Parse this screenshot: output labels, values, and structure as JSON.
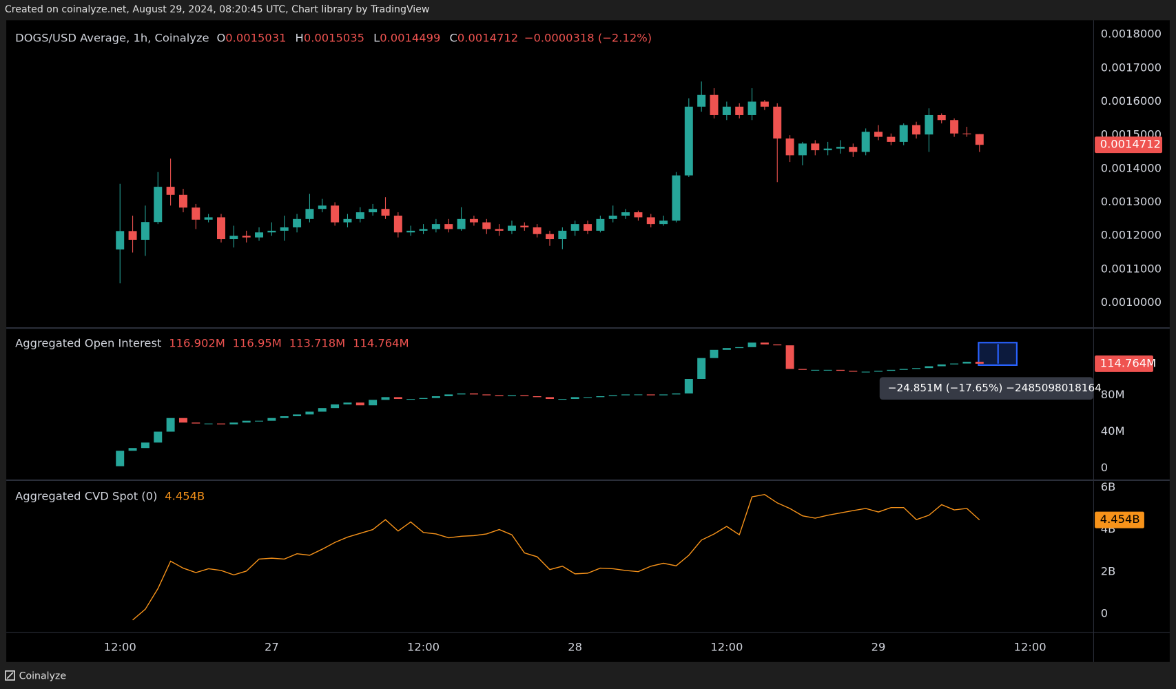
{
  "header": {
    "credit": "Created on coinalyze.net, August 29, 2024, 08:20:45 UTC, Chart library by TradingView"
  },
  "footer": {
    "brand": "Coinalyze"
  },
  "chart_data": [
    {
      "type": "candlestick",
      "title": "DOGS/USD Average, 1h, Coinalyze",
      "legend": [
        {
          "label": "O",
          "value": 0.0015031
        },
        {
          "label": "H",
          "value": 0.0015035
        },
        {
          "label": "L",
          "value": 0.0014499
        },
        {
          "label": "C",
          "value": 0.0014712
        }
      ],
      "change": "−0.0000318 (−2.12%)",
      "last_label": "0.0014712",
      "up_color": "#26a69a",
      "down_color": "#ef5350",
      "ylim": [
        0.000926,
        0.001836
      ],
      "yticks": [
        {
          "value": 0.001,
          "label": "0.0010000"
        },
        {
          "value": 0.0011,
          "label": "0.0011000"
        },
        {
          "value": 0.0012,
          "label": "0.0012000"
        },
        {
          "value": 0.0013,
          "label": "0.0013000"
        },
        {
          "value": 0.0014,
          "label": "0.0014000"
        },
        {
          "value": 0.0015,
          "label": "0.0015000"
        },
        {
          "value": 0.0016,
          "label": "0.0016000"
        },
        {
          "value": 0.0017,
          "label": "0.0017000"
        },
        {
          "value": 0.0018,
          "label": "0.0018000"
        }
      ],
      "open": [
        0.001159,
        0.001214,
        0.001188,
        0.001241,
        0.001346,
        0.001322,
        0.001284,
        0.001248,
        0.001255,
        0.00119,
        0.0012,
        0.001195,
        0.00121,
        0.001215,
        0.001225,
        0.00125,
        0.00128,
        0.00129,
        0.00124,
        0.00125,
        0.00127,
        0.00128,
        0.00126,
        0.00121,
        0.001215,
        0.00122,
        0.001235,
        0.00122,
        0.00125,
        0.00124,
        0.00122,
        0.001215,
        0.00123,
        0.001225,
        0.001205,
        0.00119,
        0.001215,
        0.001235,
        0.001215,
        0.00125,
        0.00126,
        0.00127,
        0.001255,
        0.001235,
        0.001245,
        0.00138,
        0.001585,
        0.00162,
        0.00156,
        0.001585,
        0.00156,
        0.0016,
        0.001585,
        0.00149,
        0.00144,
        0.001475,
        0.001455,
        0.00146,
        0.001465,
        0.00145,
        0.00151,
        0.001495,
        0.00148,
        0.00153,
        0.001502,
        0.00156,
        0.001545,
        0.001505,
        0.0015031
      ],
      "high": [
        0.001355,
        0.00126,
        0.00129,
        0.00139,
        0.00143,
        0.00134,
        0.001295,
        0.001265,
        0.001265,
        0.00123,
        0.001215,
        0.001225,
        0.00124,
        0.00126,
        0.001265,
        0.001325,
        0.00131,
        0.0013,
        0.001265,
        0.001285,
        0.001295,
        0.001315,
        0.00127,
        0.00123,
        0.001235,
        0.00125,
        0.00125,
        0.001285,
        0.00126,
        0.00125,
        0.001235,
        0.001245,
        0.00124,
        0.001235,
        0.001215,
        0.001225,
        0.001245,
        0.001245,
        0.00126,
        0.00129,
        0.00128,
        0.001275,
        0.001265,
        0.00126,
        0.00139,
        0.00161,
        0.00166,
        0.00164,
        0.0016,
        0.001595,
        0.00164,
        0.001605,
        0.001595,
        0.0015,
        0.00148,
        0.001485,
        0.00148,
        0.001485,
        0.001475,
        0.00152,
        0.00153,
        0.001505,
        0.001535,
        0.00154,
        0.00158,
        0.001565,
        0.00155,
        0.001525,
        0.0015035
      ],
      "low": [
        0.001058,
        0.00115,
        0.00114,
        0.001235,
        0.00129,
        0.00127,
        0.00122,
        0.00124,
        0.00118,
        0.001165,
        0.00118,
        0.001185,
        0.0012,
        0.001185,
        0.00121,
        0.00124,
        0.00127,
        0.00123,
        0.001225,
        0.00124,
        0.00126,
        0.00125,
        0.001195,
        0.0012,
        0.001205,
        0.00121,
        0.00121,
        0.001215,
        0.00123,
        0.001205,
        0.0012,
        0.001205,
        0.001215,
        0.001195,
        0.00117,
        0.00116,
        0.0012,
        0.001205,
        0.00121,
        0.00124,
        0.00125,
        0.001245,
        0.001225,
        0.00123,
        0.00124,
        0.001375,
        0.00157,
        0.00155,
        0.001545,
        0.00155,
        0.001545,
        0.001575,
        0.00136,
        0.00142,
        0.00141,
        0.00144,
        0.00144,
        0.001445,
        0.001435,
        0.00144,
        0.001485,
        0.00147,
        0.00147,
        0.00149,
        0.00145,
        0.001535,
        0.001495,
        0.001495,
        0.0014499
      ],
      "close": [
        0.001214,
        0.001188,
        0.001241,
        0.001346,
        0.001322,
        0.001284,
        0.001248,
        0.001255,
        0.00119,
        0.0012,
        0.001195,
        0.00121,
        0.001215,
        0.001225,
        0.00125,
        0.00128,
        0.00129,
        0.00124,
        0.00125,
        0.00127,
        0.00128,
        0.00126,
        0.00121,
        0.001215,
        0.00122,
        0.001235,
        0.00122,
        0.00125,
        0.00124,
        0.00122,
        0.001215,
        0.00123,
        0.001225,
        0.001205,
        0.00119,
        0.001215,
        0.001235,
        0.001215,
        0.00125,
        0.00126,
        0.00127,
        0.001255,
        0.001235,
        0.001245,
        0.00138,
        0.001585,
        0.00162,
        0.00156,
        0.001585,
        0.00156,
        0.0016,
        0.001585,
        0.00149,
        0.00144,
        0.001475,
        0.001455,
        0.00146,
        0.001465,
        0.00145,
        0.00151,
        0.001495,
        0.00148,
        0.00153,
        0.001502,
        0.00156,
        0.001545,
        0.001505,
        0.001503,
        0.0014712
      ]
    },
    {
      "type": "candlestick",
      "title": "Aggregated Open Interest",
      "legend": [
        "116.902M",
        "116.95M",
        "113.718M",
        "114.764M"
      ],
      "last_label": "114.764M",
      "measure_label": "−24.851M (−17.65%) −2485098018164",
      "up_color": "#26a69a",
      "down_color": "#ef5350",
      "ylim": [
        -13,
        152
      ],
      "yticks": [
        0,
        {
          "value": 40,
          "label": "40M"
        },
        {
          "value": 80,
          "label": "80M"
        }
      ],
      "open": [
        2,
        19,
        22,
        28,
        40,
        55,
        50,
        49,
        49,
        48,
        50,
        52,
        52,
        55,
        57,
        59,
        62,
        66,
        70,
        72,
        69,
        75,
        78,
        76,
        76,
        77,
        79,
        81,
        82,
        81,
        80,
        79,
        80,
        79,
        78,
        76,
        76,
        78,
        78,
        79,
        80,
        81,
        81,
        80,
        81,
        82,
        98,
        121,
        130,
        132,
        133,
        138,
        136,
        135,
        109,
        108,
        108,
        108,
        107,
        106,
        106,
        107,
        108,
        109,
        110,
        112,
        114,
        115,
        116.902
      ],
      "close": [
        19,
        22,
        28,
        40,
        55,
        50,
        49,
        49,
        48,
        50,
        52,
        52,
        55,
        57,
        59,
        62,
        66,
        70,
        72,
        69,
        75,
        78,
        76,
        76,
        77,
        79,
        81,
        82,
        81,
        80,
        79,
        80,
        79,
        78,
        76,
        76,
        78,
        78,
        79,
        80,
        81,
        81,
        80,
        81,
        82,
        98,
        121,
        130,
        132,
        133,
        138,
        136,
        135,
        109,
        108,
        108,
        108,
        107,
        106,
        106,
        107,
        108,
        109,
        110,
        112,
        114,
        115,
        116.902,
        114.764
      ]
    },
    {
      "type": "line",
      "title": "Aggregated CVD Spot (0)",
      "legend": [
        "4.454B"
      ],
      "last_label": "4.454B",
      "color": "#f7931a",
      "ylim": [
        -0.86,
        6.25
      ],
      "yticks": [
        0,
        {
          "value": 2,
          "label": "2B"
        },
        {
          "value": 4,
          "label": "4B"
        },
        {
          "value": 6,
          "label": "6B"
        }
      ],
      "values": [
        null,
        -0.29,
        0.22,
        1.2,
        2.5,
        2.17,
        1.96,
        2.14,
        2.06,
        1.85,
        2.03,
        2.6,
        2.64,
        2.6,
        2.85,
        2.78,
        3.07,
        3.39,
        3.64,
        3.82,
        4.0,
        4.47,
        3.93,
        4.36,
        3.86,
        3.79,
        3.61,
        3.68,
        3.71,
        3.79,
        4.0,
        3.75,
        2.89,
        2.71,
        2.1,
        2.26,
        1.9,
        1.93,
        2.17,
        2.14,
        2.06,
        2.0,
        2.26,
        2.4,
        2.28,
        2.78,
        3.5,
        3.79,
        4.15,
        3.75,
        5.55,
        5.66,
        5.26,
        5.0,
        4.65,
        4.54,
        4.68,
        4.79,
        4.9,
        5.0,
        4.83,
        5.04,
        5.04,
        4.47,
        4.68,
        5.18,
        4.93,
        5.0,
        4.454
      ],
      "xlim": [
        -9,
        77
      ],
      "xticks": [
        {
          "value": 0,
          "label": "12:00"
        },
        {
          "value": 12,
          "label": "27"
        },
        {
          "value": 24,
          "label": "12:00"
        },
        {
          "value": 36,
          "label": "28"
        },
        {
          "value": 48,
          "label": "12:00"
        },
        {
          "value": 60,
          "label": "29"
        },
        {
          "value": 72,
          "label": "12:00"
        }
      ]
    }
  ]
}
